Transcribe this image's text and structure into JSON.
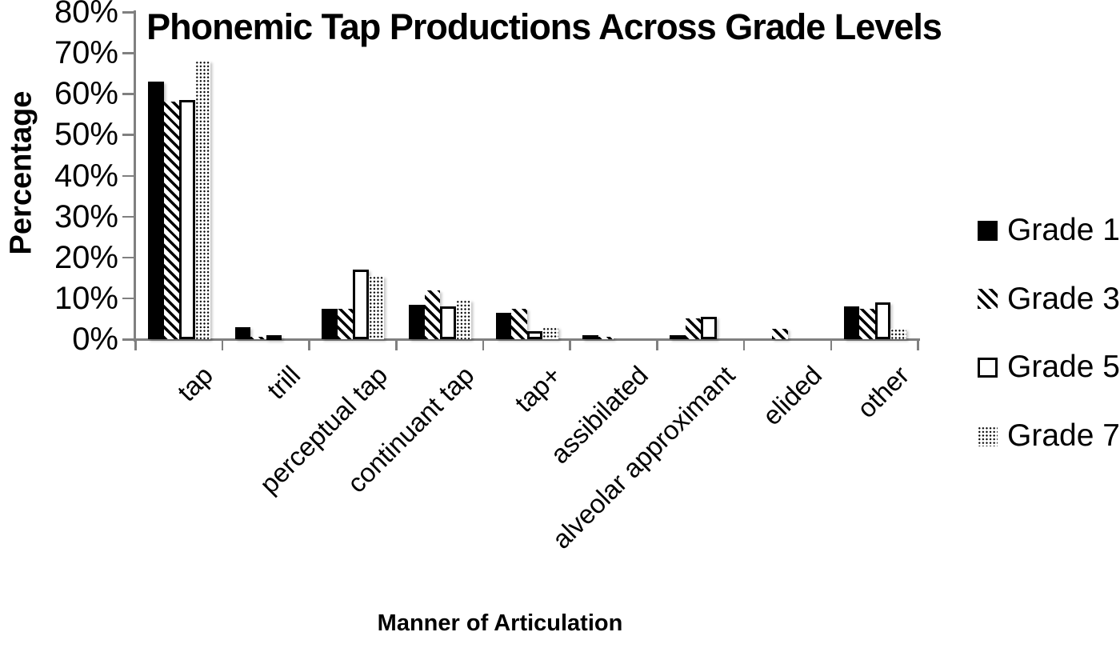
{
  "chart_data": {
    "type": "bar",
    "title": "Phonemic Tap Productions Across Grade Levels",
    "xlabel": "Manner of Articulation",
    "ylabel": "Percentage",
    "ylim": [
      0,
      80
    ],
    "ytick_step": 10,
    "ytick_labels": [
      "0%",
      "10%",
      "20%",
      "30%",
      "40%",
      "50%",
      "60%",
      "70%",
      "80%"
    ],
    "categories": [
      "tap",
      "trill",
      "perceptual tap",
      "continuant tap",
      "tap+",
      "assibilated",
      "alveolar approximant",
      "elided",
      "other"
    ],
    "series": [
      {
        "name": "Grade 1",
        "pattern": "solid-black",
        "values": [
          63,
          3,
          7.5,
          8.5,
          6.5,
          1,
          1,
          0,
          8
        ]
      },
      {
        "name": "Grade 3",
        "pattern": "diagonal-hatch",
        "values": [
          58,
          0.5,
          7.5,
          12,
          7.5,
          0.5,
          5,
          2.5,
          7.5
        ]
      },
      {
        "name": "Grade 5",
        "pattern": "white-outline",
        "values": [
          58.5,
          1,
          17,
          8,
          2,
          0,
          5.5,
          0,
          9
        ]
      },
      {
        "name": "Grade 7",
        "pattern": "dotted",
        "values": [
          68,
          0,
          15.5,
          9.5,
          3,
          0,
          0,
          0,
          2.5
        ]
      }
    ],
    "legend_position": "right",
    "grid": false,
    "colors": {
      "bar": "#000000",
      "axis": "#808080",
      "text": "#000000",
      "background": "#ffffff"
    }
  }
}
